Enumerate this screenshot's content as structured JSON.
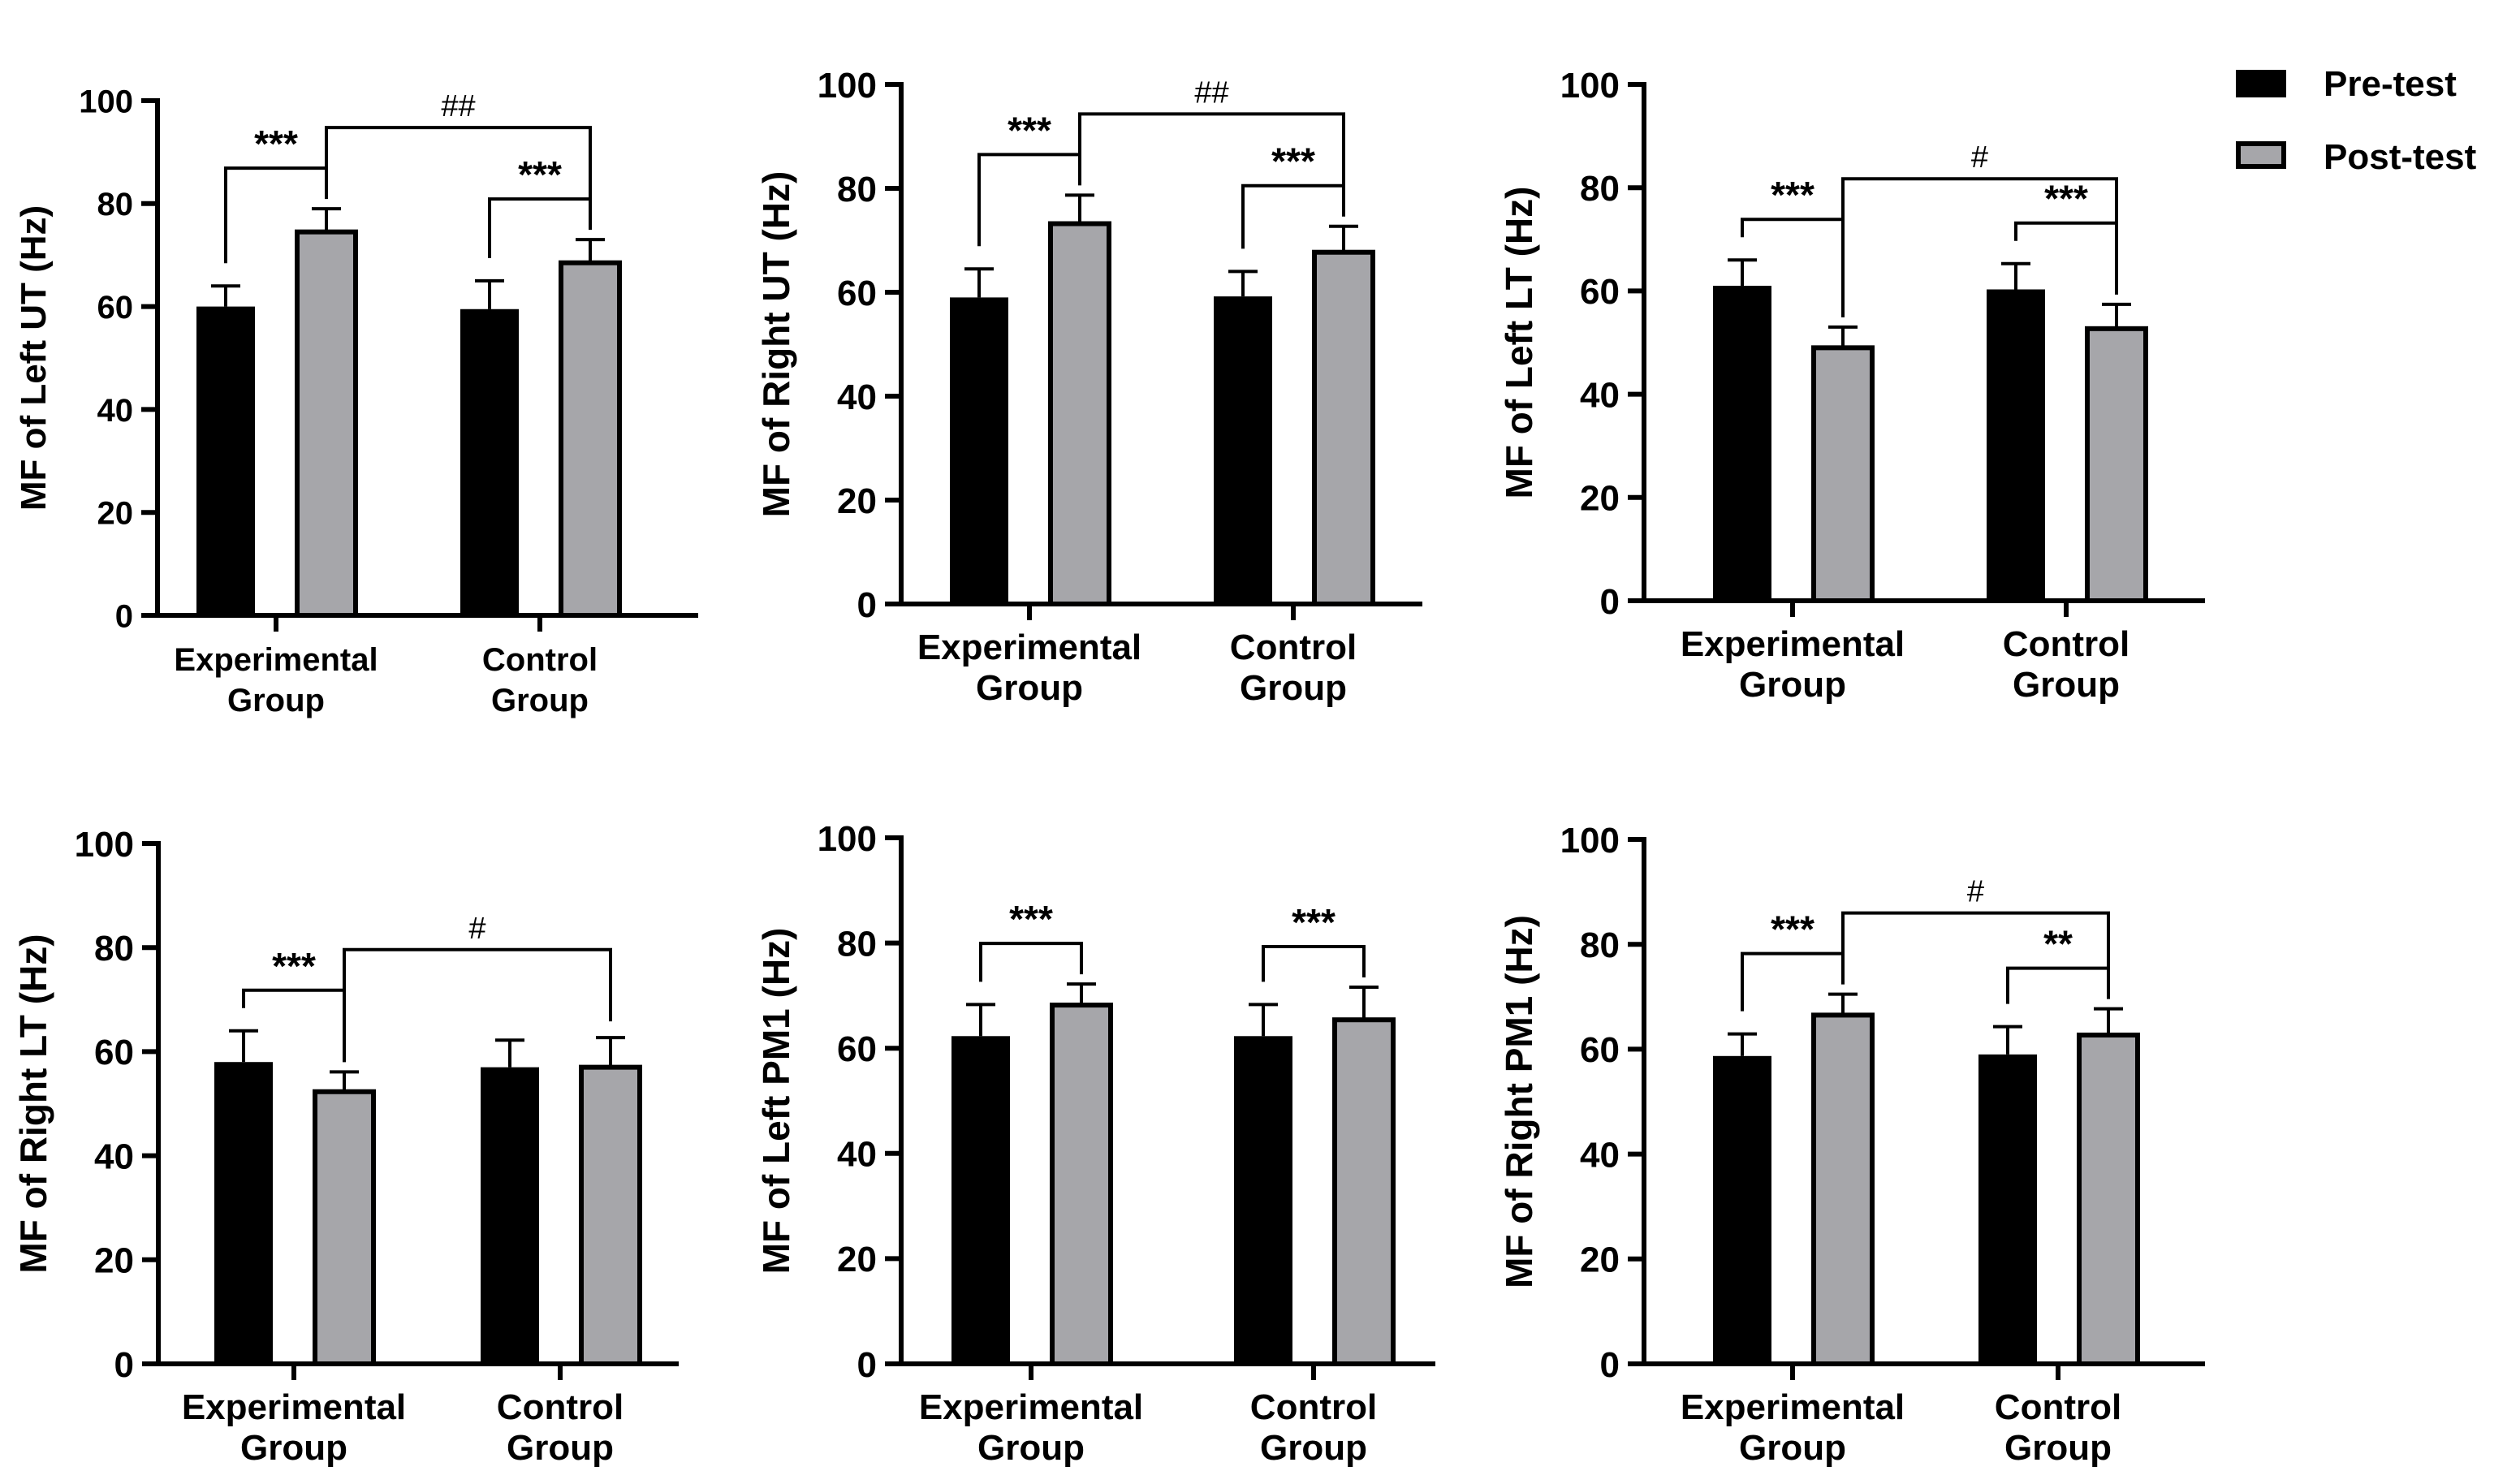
{
  "legend": {
    "entries": [
      {
        "label": "Pre-test",
        "color": "#000000"
      },
      {
        "label": "Post-test",
        "color": "#a6a6aa"
      }
    ],
    "placement": "top-right"
  },
  "colors": {
    "pre": "#000000",
    "post": "#a6a6aa",
    "axis": "#000000"
  },
  "chart_data": [
    {
      "type": "bar",
      "categories": [
        "Experimental\nGroup",
        "Control\nGroup"
      ],
      "series": [
        {
          "name": "Pre-test",
          "values": [
            60,
            59.5
          ],
          "errors": [
            4,
            5.5
          ]
        },
        {
          "name": "Post-test",
          "values": [
            74.5,
            68.5
          ],
          "errors": [
            4.5,
            4.5
          ]
        }
      ],
      "ylabel": "MF of Left UT (Hz)",
      "ylim": [
        0,
        100
      ],
      "yticks": [
        0,
        20,
        40,
        60,
        80,
        100
      ],
      "annotations": {
        "within": [
          "***",
          "***"
        ],
        "between": "##"
      }
    },
    {
      "type": "bar",
      "categories": [
        "Experimental\nGroup",
        "Control\nGroup"
      ],
      "series": [
        {
          "name": "Pre-test",
          "values": [
            59,
            59.2
          ],
          "errors": [
            5.5,
            4.8
          ]
        },
        {
          "name": "Post-test",
          "values": [
            73.2,
            67.7
          ],
          "errors": [
            5.5,
            5
          ]
        }
      ],
      "ylabel": "MF of Right UT (Hz)",
      "ylim": [
        0,
        100
      ],
      "yticks": [
        0,
        20,
        40,
        60,
        80,
        100
      ],
      "annotations": {
        "within": [
          "***",
          "***"
        ],
        "between": "##"
      }
    },
    {
      "type": "bar",
      "categories": [
        "Experimental\nGroup",
        "Control\nGroup"
      ],
      "series": [
        {
          "name": "Pre-test",
          "values": [
            61,
            60.3
          ],
          "errors": [
            5,
            5
          ]
        },
        {
          "name": "Post-test",
          "values": [
            49,
            52.7
          ],
          "errors": [
            4,
            4.7
          ]
        }
      ],
      "ylabel": "MF of Left LT (Hz)",
      "ylim": [
        0,
        100
      ],
      "yticks": [
        0,
        20,
        40,
        60,
        80,
        100
      ],
      "annotations": {
        "within": [
          "***",
          "***"
        ],
        "between": "#"
      }
    },
    {
      "type": "bar",
      "categories": [
        "Experimental\nGroup",
        "Control\nGroup"
      ],
      "series": [
        {
          "name": "Pre-test",
          "values": [
            58,
            57
          ],
          "errors": [
            6,
            5.2
          ]
        },
        {
          "name": "Post-test",
          "values": [
            52.3,
            57
          ],
          "errors": [
            3.8,
            5.7
          ]
        }
      ],
      "ylabel": "MF of Right LT (Hz)",
      "ylim": [
        0,
        100
      ],
      "yticks": [
        0,
        20,
        40,
        60,
        80,
        100
      ],
      "annotations": {
        "within": [
          "***",
          ""
        ],
        "between": "#"
      }
    },
    {
      "type": "bar",
      "categories": [
        "Experimental\nGroup",
        "Control\nGroup"
      ],
      "series": [
        {
          "name": "Pre-test",
          "values": [
            62.3,
            62.3
          ],
          "errors": [
            6,
            6
          ]
        },
        {
          "name": "Post-test",
          "values": [
            68.2,
            65.4
          ],
          "errors": [
            4,
            6.2
          ]
        }
      ],
      "ylabel": "MF of Left PM1 (Hz)",
      "ylim": [
        0,
        100
      ],
      "yticks": [
        0,
        20,
        40,
        60,
        80,
        100
      ],
      "annotations": {
        "within": [
          "***",
          "***"
        ],
        "between": ""
      }
    },
    {
      "type": "bar",
      "categories": [
        "Experimental\nGroup",
        "Control\nGroup"
      ],
      "series": [
        {
          "name": "Pre-test",
          "values": [
            58.7,
            59
          ],
          "errors": [
            4.2,
            5.3
          ]
        },
        {
          "name": "Post-test",
          "values": [
            66.5,
            62.7
          ],
          "errors": [
            4,
            5
          ]
        }
      ],
      "ylabel": "MF of Right PM1 (Hz)",
      "ylim": [
        0,
        100
      ],
      "yticks": [
        0,
        20,
        40,
        60,
        80,
        100
      ],
      "annotations": {
        "within": [
          "***",
          "**"
        ],
        "between": "#"
      }
    }
  ]
}
